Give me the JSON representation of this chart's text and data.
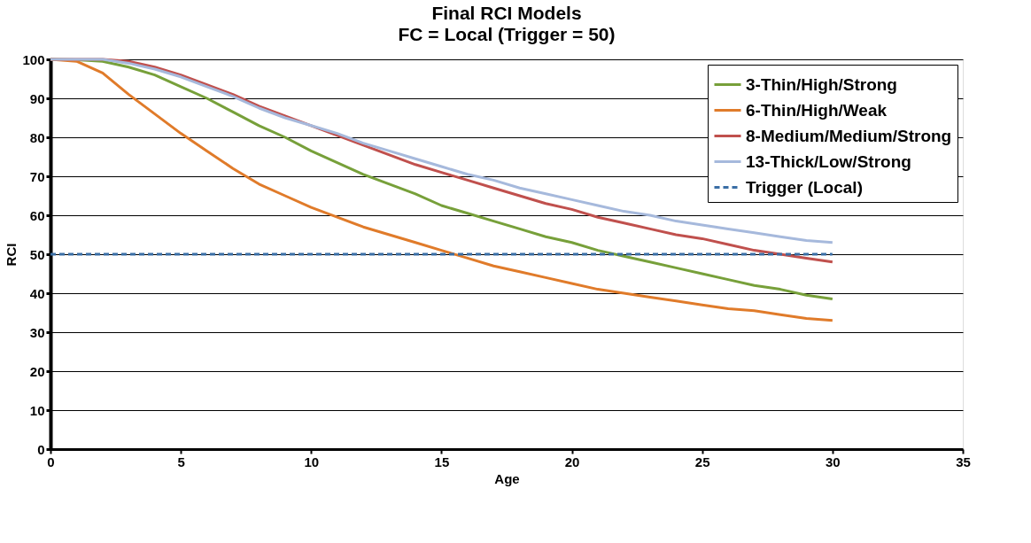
{
  "chart_data": {
    "type": "line",
    "title": "Final RCI Models",
    "subtitle": "FC = Local (Trigger = 50)",
    "xlabel": "Age",
    "ylabel": "RCI",
    "x": [
      0,
      1,
      2,
      3,
      4,
      5,
      6,
      7,
      8,
      9,
      10,
      11,
      12,
      13,
      14,
      15,
      16,
      17,
      18,
      19,
      20,
      21,
      22,
      23,
      24,
      25,
      26,
      27,
      28,
      29,
      30
    ],
    "series": [
      {
        "name": "3-Thin/High/Strong",
        "color": "#77a03a",
        "values": [
          100,
          99.9,
          99.5,
          98,
          96,
          93,
          90,
          86.5,
          83,
          80,
          76.5,
          73.5,
          70.5,
          68,
          65.5,
          62.5,
          60.5,
          58.5,
          56.5,
          54.5,
          53,
          51,
          49.5,
          48,
          46.5,
          45,
          43.5,
          42,
          41,
          39.5,
          38.5
        ]
      },
      {
        "name": "6-Thin/High/Weak",
        "color": "#e07b2a",
        "values": [
          100,
          99.5,
          96.5,
          91,
          86,
          81,
          76.5,
          72,
          68,
          65,
          62,
          59.5,
          57,
          55,
          53,
          51,
          49,
          47,
          45.5,
          44,
          42.5,
          41,
          40,
          39,
          38,
          37,
          36,
          35.5,
          34.5,
          33.5,
          33
        ]
      },
      {
        "name": "8-Medium/Medium/Strong",
        "color": "#c0504d",
        "values": [
          100,
          100,
          100,
          99.5,
          98,
          96,
          93.5,
          91,
          88,
          85.5,
          83,
          80.5,
          78,
          75.5,
          73,
          71,
          69,
          67,
          65,
          63,
          61.5,
          59.5,
          58,
          56.5,
          55,
          54,
          52.5,
          51,
          50,
          49,
          48
        ]
      },
      {
        "name": "13-Thick/Low/Strong",
        "color": "#a6b9dc",
        "values": [
          100,
          100,
          100,
          99,
          97.5,
          95.5,
          93,
          90.5,
          87.5,
          85,
          83,
          81,
          78.5,
          76.5,
          74.5,
          72.5,
          70.5,
          69,
          67,
          65.5,
          64,
          62.5,
          61,
          60,
          58.5,
          57.5,
          56.5,
          55.5,
          54.5,
          53.5,
          53
        ]
      },
      {
        "name": "Trigger (Local)",
        "color": "#3a6ea5",
        "line_style": "dashed",
        "values": [
          50,
          50,
          50,
          50,
          50,
          50,
          50,
          50,
          50,
          50,
          50,
          50,
          50,
          50,
          50,
          50,
          50,
          50,
          50,
          50,
          50,
          50,
          50,
          50,
          50,
          50,
          50,
          50,
          50,
          50,
          50
        ]
      }
    ],
    "xlim": [
      0,
      35
    ],
    "xticks": [
      0,
      5,
      10,
      15,
      20,
      25,
      30,
      35
    ],
    "ylim": [
      0,
      100
    ],
    "yticks": [
      0,
      10,
      20,
      30,
      40,
      50,
      60,
      70,
      80,
      90,
      100
    ],
    "grid": "y",
    "legend": "top right",
    "marker": "none",
    "line_style": "solid"
  }
}
